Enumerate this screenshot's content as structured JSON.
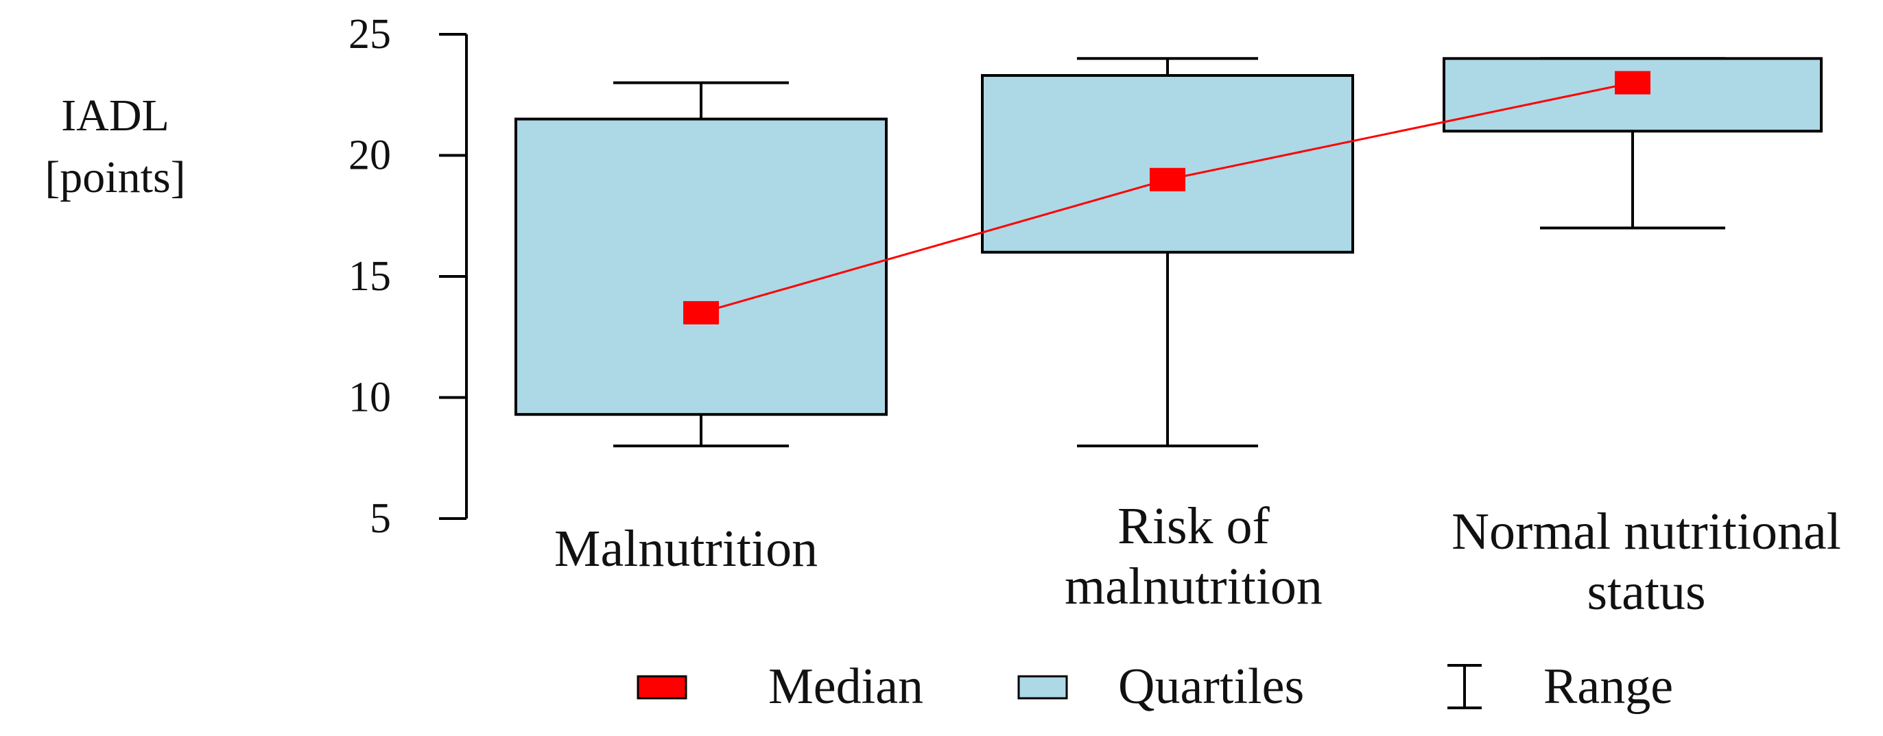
{
  "chart_data": {
    "type": "box",
    "ylabel_lines": [
      "IADL",
      "[points]"
    ],
    "ylim": [
      5,
      25
    ],
    "yticks": [
      5,
      10,
      15,
      20,
      25
    ],
    "grid": false,
    "categories": [
      {
        "label_lines": [
          "Malnutrition"
        ],
        "min": 8,
        "q1": 9.3,
        "median": 13.5,
        "q3": 21.5,
        "max": 23
      },
      {
        "label_lines": [
          "Risk of",
          "malnutrition"
        ],
        "min": 8,
        "q1": 16,
        "median": 19,
        "q3": 23.3,
        "max": 24
      },
      {
        "label_lines": [
          "Normal nutritional",
          "status"
        ],
        "min": 17,
        "q1": 21,
        "median": 23,
        "q3": 24,
        "max": 24
      }
    ],
    "median_line": true,
    "legend": {
      "placement": "bottom",
      "items": [
        {
          "label": "Median",
          "symbol": "median"
        },
        {
          "label": "Quartiles",
          "symbol": "quartiles"
        },
        {
          "label": "Range",
          "symbol": "range"
        }
      ]
    },
    "colors": {
      "box_fill": "#add8e6",
      "median": "#ff0000",
      "line": "#ff0000",
      "axis": "#000000"
    }
  }
}
